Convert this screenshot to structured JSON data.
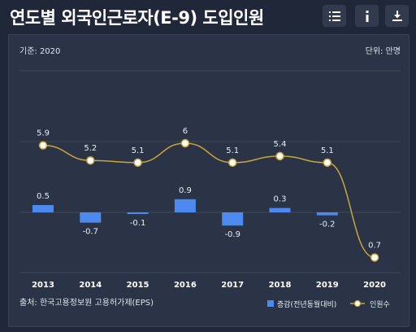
{
  "title": "연도별 외국인근로자(E-9) 도입인원",
  "toolbar": {
    "list_icon": "list-icon",
    "info_icon": "info-icon",
    "download_icon": "download-icon"
  },
  "chart_meta": {
    "basis": "기준: 2020",
    "unit": "단위: 만명",
    "source": "출처: 한국고용정보원 고용허가제(EPS)"
  },
  "chart_data": {
    "type": "bar",
    "categories": [
      "2013",
      "2014",
      "2015",
      "2016",
      "2017",
      "2018",
      "2019",
      "2020"
    ],
    "series": [
      {
        "name": "증감(전년동월대비)",
        "type": "bar",
        "values": [
          0.5,
          -0.7,
          -0.1,
          0.9,
          -0.9,
          0.3,
          -0.2,
          null
        ],
        "labels": [
          "0.5",
          "-0.7",
          "-0.1",
          "0.9",
          "-0.9",
          "0.3",
          "-0.2",
          ""
        ]
      },
      {
        "name": "인원수",
        "type": "line",
        "values": [
          5.9,
          5.2,
          5.1,
          6,
          5.1,
          5.4,
          5.1,
          0.7
        ],
        "labels": [
          "5.9",
          "5.2",
          "5.1",
          "6",
          "5.1",
          "5.4",
          "5.1",
          "0.7"
        ]
      }
    ],
    "legend_position": "bottom-right",
    "grid": true
  },
  "colors": {
    "bar": "#4d8af0",
    "line": "#c9a63a",
    "marker_fill": "#ffffff",
    "grid": "#3d475a"
  }
}
